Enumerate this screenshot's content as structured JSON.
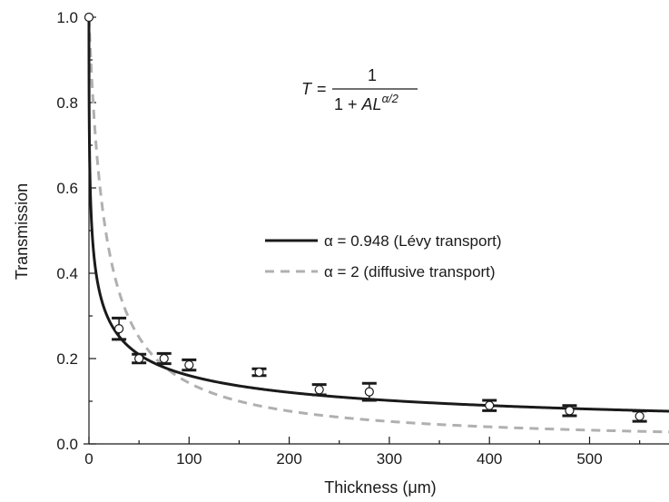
{
  "chart_data": {
    "type": "line",
    "title": "",
    "xlabel": "Thickness (μm)",
    "ylabel": "Transmission",
    "xlim": [
      0,
      560
    ],
    "ylim": [
      0,
      1.0
    ],
    "x_ticks": [
      0,
      100,
      200,
      300,
      400,
      500
    ],
    "x_tick_labels": [
      "0",
      "100",
      "200",
      "300",
      "400",
      "500"
    ],
    "y_ticks": [
      0,
      0.2,
      0.4,
      0.6,
      0.8,
      1.0
    ],
    "y_tick_labels": [
      "0.0",
      "0.2",
      "0.4",
      "0.6",
      "0.8",
      "1.0"
    ],
    "grid": false,
    "legend_position": "center-right",
    "annotation": {
      "lhs": "T",
      "equals": "=",
      "numerator": "1",
      "denominator_prefix": "1 + ",
      "denominator_symbol": "AL",
      "exponent": "α/2"
    },
    "series": [
      {
        "name": "α = 0.948 (Lévy transport)",
        "kind": "fit",
        "alpha": 0.948,
        "A": 0.591,
        "color": "#1a1a1a",
        "dash": "solid"
      },
      {
        "name": "α = 2 (diffusive transport)",
        "kind": "fit",
        "alpha": 2,
        "A": 0.06,
        "color": "#b0b0b0",
        "dash": "dashed"
      }
    ],
    "measurements": {
      "x": [
        0,
        30,
        50,
        75,
        100,
        170,
        230,
        280,
        400,
        480,
        550
      ],
      "y": [
        1.0,
        0.27,
        0.2,
        0.2,
        0.185,
        0.168,
        0.127,
        0.122,
        0.09,
        0.078,
        0.065
      ],
      "err_low": [
        0.0,
        0.025,
        0.01,
        0.012,
        0.012,
        0.008,
        0.012,
        0.02,
        0.012,
        0.012,
        0.012
      ],
      "err_high": [
        0.0,
        0.025,
        0.01,
        0.012,
        0.012,
        0.008,
        0.012,
        0.02,
        0.012,
        0.012,
        0.012
      ]
    }
  }
}
